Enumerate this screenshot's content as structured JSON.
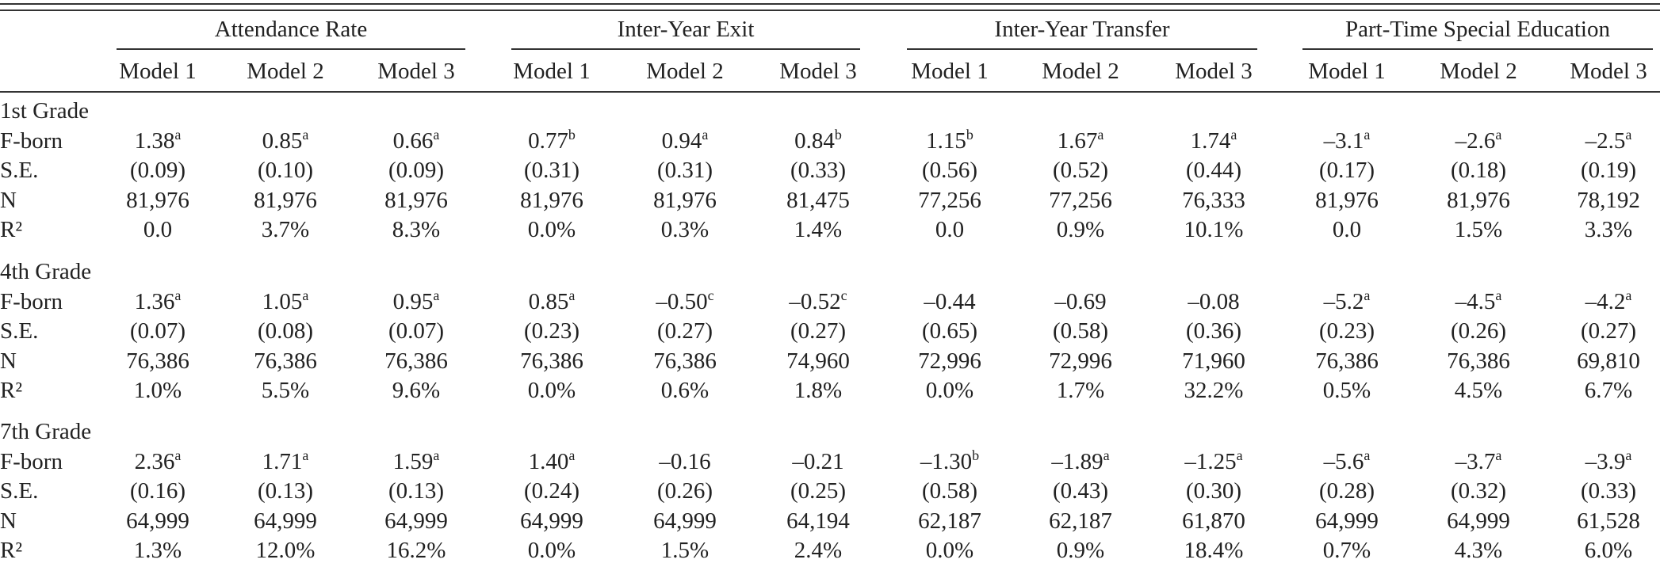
{
  "table": {
    "groups": [
      {
        "title": "Attendance Rate",
        "models": [
          "Model 1",
          "Model 2",
          "Model 3"
        ]
      },
      {
        "title": "Inter-Year Exit",
        "models": [
          "Model 1",
          "Model 2",
          "Model 3"
        ]
      },
      {
        "title": "Inter-Year Transfer",
        "models": [
          "Model 1",
          "Model 2",
          "Model 3"
        ]
      },
      {
        "title": "Part-Time Special Education",
        "models": [
          "Model 1",
          "Model 2",
          "Model 3"
        ]
      }
    ],
    "sections": [
      {
        "title": "1st Grade",
        "rows": [
          {
            "label": "F-born",
            "cells": [
              {
                "text": "1.38",
                "sup": "a"
              },
              {
                "text": "0.85",
                "sup": "a"
              },
              {
                "text": "0.66",
                "sup": "a"
              },
              {
                "text": "0.77",
                "sup": "b"
              },
              {
                "text": "0.94",
                "sup": "a"
              },
              {
                "text": "0.84",
                "sup": "b"
              },
              {
                "text": "1.15",
                "sup": "b"
              },
              {
                "text": "1.67",
                "sup": "a"
              },
              {
                "text": "1.74",
                "sup": "a"
              },
              {
                "text": "–3.1",
                "sup": "a"
              },
              {
                "text": "–2.6",
                "sup": "a"
              },
              {
                "text": "–2.5",
                "sup": "a"
              }
            ]
          },
          {
            "label": "S.E.",
            "cells": [
              "(0.09)",
              "(0.10)",
              "(0.09)",
              "(0.31)",
              "(0.31)",
              "(0.33)",
              "(0.56)",
              "(0.52)",
              "(0.44)",
              "(0.17)",
              "(0.18)",
              "(0.19)"
            ]
          },
          {
            "label": "N",
            "cells": [
              "81,976",
              "81,976",
              "81,976",
              "81,976",
              "81,976",
              "81,475",
              "77,256",
              "77,256",
              "76,333",
              "81,976",
              "81,976",
              "78,192"
            ]
          },
          {
            "label": "R²",
            "cells": [
              "0.0",
              "3.7%",
              "8.3%",
              "0.0%",
              "0.3%",
              "1.4%",
              "0.0",
              "0.9%",
              "10.1%",
              "0.0",
              "1.5%",
              "3.3%"
            ]
          }
        ]
      },
      {
        "title": "4th Grade",
        "rows": [
          {
            "label": "F-born",
            "cells": [
              {
                "text": "1.36",
                "sup": "a"
              },
              {
                "text": "1.05",
                "sup": "a"
              },
              {
                "text": "0.95",
                "sup": "a"
              },
              {
                "text": "0.85",
                "sup": "a"
              },
              {
                "text": "–0.50",
                "sup": "c"
              },
              {
                "text": "–0.52",
                "sup": "c"
              },
              "–0.44",
              "–0.69",
              "–0.08",
              {
                "text": "–5.2",
                "sup": "a"
              },
              {
                "text": "–4.5",
                "sup": "a"
              },
              {
                "text": "–4.2",
                "sup": "a"
              }
            ]
          },
          {
            "label": "S.E.",
            "cells": [
              "(0.07)",
              "(0.08)",
              "(0.07)",
              "(0.23)",
              "(0.27)",
              "(0.27)",
              "(0.65)",
              "(0.58)",
              "(0.36)",
              "(0.23)",
              "(0.26)",
              "(0.27)"
            ]
          },
          {
            "label": "N",
            "cells": [
              "76,386",
              "76,386",
              "76,386",
              "76,386",
              "76,386",
              "74,960",
              "72,996",
              "72,996",
              "71,960",
              "76,386",
              "76,386",
              "69,810"
            ]
          },
          {
            "label": "R²",
            "cells": [
              "1.0%",
              "5.5%",
              "9.6%",
              "0.0%",
              "0.6%",
              "1.8%",
              "0.0%",
              "1.7%",
              "32.2%",
              "0.5%",
              "4.5%",
              "6.7%"
            ]
          }
        ]
      },
      {
        "title": "7th Grade",
        "rows": [
          {
            "label": "F-born",
            "cells": [
              {
                "text": "2.36",
                "sup": "a"
              },
              {
                "text": "1.71",
                "sup": "a"
              },
              {
                "text": "1.59",
                "sup": "a"
              },
              {
                "text": "1.40",
                "sup": "a"
              },
              "–0.16",
              "–0.21",
              {
                "text": "–1.30",
                "sup": "b"
              },
              {
                "text": "–1.89",
                "sup": "a"
              },
              {
                "text": "–1.25",
                "sup": "a"
              },
              {
                "text": "–5.6",
                "sup": "a"
              },
              {
                "text": "–3.7",
                "sup": "a"
              },
              {
                "text": "–3.9",
                "sup": "a"
              }
            ]
          },
          {
            "label": "S.E.",
            "cells": [
              "(0.16)",
              "(0.13)",
              "(0.13)",
              "(0.24)",
              "(0.26)",
              "(0.25)",
              "(0.58)",
              "(0.43)",
              "(0.30)",
              "(0.28)",
              "(0.32)",
              "(0.33)"
            ]
          },
          {
            "label": "N",
            "cells": [
              "64,999",
              "64,999",
              "64,999",
              "64,999",
              "64,999",
              "64,194",
              "62,187",
              "62,187",
              "61,870",
              "64,999",
              "64,999",
              "61,528"
            ]
          },
          {
            "label": "R²",
            "cells": [
              "1.3%",
              "12.0%",
              "16.2%",
              "0.0%",
              "1.5%",
              "2.4%",
              "0.0%",
              "0.9%",
              "18.4%",
              "0.7%",
              "4.3%",
              "6.0%"
            ]
          }
        ]
      }
    ]
  }
}
